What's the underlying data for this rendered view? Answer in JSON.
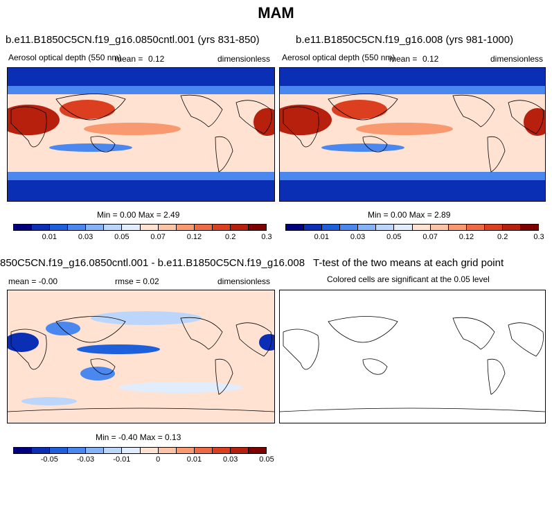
{
  "chart_data": {
    "type": "heatmap",
    "title": "MAM",
    "panels": [
      {
        "case": "b.e11.B1850C5CN.f19_g16.0850cntl.001 (yrs 831-850)",
        "variable": "Aerosol optical depth (550 nm)",
        "mean_label": "mean =",
        "mean_value": "0.12",
        "units": "dimensionless",
        "min_max": "Min =   0.00 Max =   2.49",
        "colorbar_ticks": [
          "0.01",
          "0.03",
          "0.05",
          "0.07",
          "0.12",
          "0.2",
          "0.3"
        ]
      },
      {
        "case": "b.e11.B1850C5CN.f19_g16.008 (yrs 981-1000)",
        "variable": "Aerosol optical depth (550 nm)",
        "mean_label": "mean =",
        "mean_value": "0.12",
        "units": "dimensionless",
        "min_max": "Min =   0.00 Max =   2.89",
        "colorbar_ticks": [
          "0.01",
          "0.03",
          "0.05",
          "0.07",
          "0.12",
          "0.2",
          "0.3"
        ]
      },
      {
        "case": "850C5CN.f19_g16.0850cntl.001 - b.e11.B1850C5CN.f19_g16.008",
        "mean_text": "mean =  -0.00",
        "rmse_text": "rmse =   0.02",
        "units": "dimensionless",
        "min_max": "Min =  -0.40 Max =   0.13",
        "colorbar_ticks": [
          "-0.05",
          "-0.03",
          "-0.01",
          "0",
          "0.01",
          "0.03",
          "0.05"
        ]
      },
      {
        "title": "T-test of the two means at each grid point",
        "subtitle": "Colored cells are significant at the 0.05 level"
      }
    ]
  },
  "colors": {
    "seq": [
      "#00007f",
      "#0a2fb4",
      "#1e5fdc",
      "#4a87ee",
      "#85b3f7",
      "#bcd6fb",
      "#e1ecfd",
      "#ffe2d2",
      "#fcc4a7",
      "#f8996f",
      "#ee6a44",
      "#dc3e20",
      "#b8200e",
      "#7f0000"
    ],
    "diff": [
      "#00007f",
      "#0a2fb4",
      "#1e5fdc",
      "#4a87ee",
      "#85b3f7",
      "#bcd6fb",
      "#e1ecfd",
      "#ffe2d2",
      "#fcc4a7",
      "#f8996f",
      "#ee6a44",
      "#dc3e20",
      "#b8200e",
      "#7f0000"
    ]
  }
}
